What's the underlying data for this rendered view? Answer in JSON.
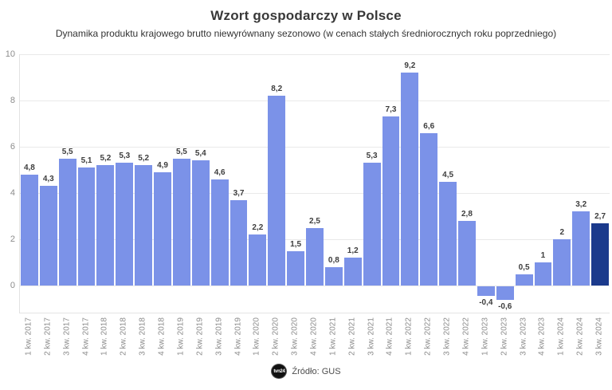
{
  "header": {
    "title": "Wzort gospodarczy w Polsce",
    "subtitle": "Dynamika produktu krajowego brutto niewyrównany sezonowo (w cenach stałych średniorocznych roku poprzedniego)"
  },
  "chart_data": {
    "type": "bar",
    "title": "Wzort gospodarczy w Polsce",
    "subtitle": "Dynamika produktu krajowego brutto niewyrównany sezonowo (w cenach stałych średniorocznych roku poprzedniego)",
    "xlabel": "",
    "ylabel": "",
    "categories": [
      "1 kw. 2017",
      "2 kw. 2017",
      "3 kw. 2017",
      "4 kw. 2017",
      "1 kw. 2018",
      "2 kw. 2018",
      "3 kw. 2018",
      "4 kw. 2018",
      "1 kw. 2019",
      "2 kw. 2019",
      "3 kw. 2019",
      "4 kw. 2019",
      "1 kw. 2020",
      "2 kw. 2020",
      "3 kw. 2020",
      "4 kw. 2020",
      "1 kw. 2021",
      "2 kw. 2021",
      "3 kw. 2021",
      "4 kw. 2021",
      "1 kw. 2022",
      "2 kw. 2022",
      "3 kw. 2022",
      "4 kw. 2022",
      "1 kw. 2023",
      "2 kw. 2023",
      "3 kw. 2023",
      "4 kw. 2023",
      "1 kw. 2024",
      "2 kw. 2024",
      "3 kw. 2024"
    ],
    "values": [
      4.8,
      4.3,
      5.5,
      5.1,
      5.2,
      5.3,
      5.2,
      4.9,
      5.5,
      5.4,
      4.6,
      3.7,
      2.2,
      8.2,
      1.5,
      2.5,
      0.8,
      1.2,
      5.3,
      7.3,
      9.2,
      6.6,
      4.5,
      2.8,
      -0.4,
      -0.6,
      0.5,
      1,
      2,
      3.2,
      2.7
    ],
    "value_labels": [
      "4,8",
      "4,3",
      "5,5",
      "5,1",
      "5,2",
      "5,3",
      "5,2",
      "4,9",
      "5,5",
      "5,4",
      "4,6",
      "3,7",
      "2,2",
      "8,2",
      "1,5",
      "2,5",
      "0,8",
      "1,2",
      "5,3",
      "7,3",
      "9,2",
      "6,6",
      "4,5",
      "2,8",
      "-0,4",
      "-0,6",
      "0,5",
      "1",
      "2",
      "3,2",
      "2,7"
    ],
    "y_ticks": [
      10,
      8,
      6,
      4,
      2,
      0
    ],
    "ylim": [
      -1.2,
      10
    ],
    "grid": true,
    "legend": false,
    "bar_color": "#7B92E8",
    "highlight_color": "#1B3A8C",
    "highlight_index": 30
  },
  "footer": {
    "logo_text": "tvn24",
    "source_label": "Źródło: GUS"
  }
}
